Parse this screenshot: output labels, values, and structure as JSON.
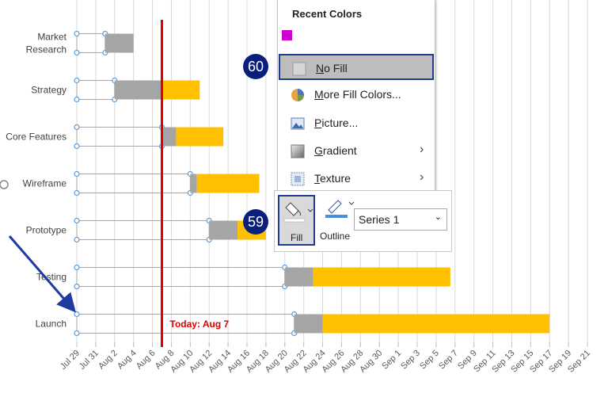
{
  "chart_data": {
    "type": "bar",
    "orientation": "horizontal",
    "stacked": true,
    "categories": [
      "Market\nResearch",
      "Strategy",
      "Core Features",
      "Wireframe",
      "Prototype",
      "Testing",
      "Launch"
    ],
    "series": [
      {
        "color": "none",
        "values": [
          3,
          4,
          9,
          12,
          14,
          22,
          23
        ]
      },
      {
        "color": "#a5a5a5",
        "values": [
          3,
          5,
          1.5,
          0.7,
          3,
          3,
          3
        ]
      },
      {
        "color": "#ffc000",
        "values": [
          0,
          4,
          5,
          6.6,
          3,
          14.5,
          24
        ]
      }
    ],
    "xlim": [
      0,
      54
    ],
    "xticks": [
      {
        "value": 0,
        "label": "Jul 29"
      },
      {
        "value": 2,
        "label": "Jul 31"
      },
      {
        "value": 4,
        "label": "Aug 2"
      },
      {
        "value": 6,
        "label": "Aug 4"
      },
      {
        "value": 8,
        "label": "Aug 6"
      },
      {
        "value": 10,
        "label": "Aug 8"
      },
      {
        "value": 12,
        "label": "Aug 10"
      },
      {
        "value": 14,
        "label": "Aug 12"
      },
      {
        "value": 16,
        "label": "Aug 14"
      },
      {
        "value": 18,
        "label": "Aug 16"
      },
      {
        "value": 20,
        "label": "Aug 18"
      },
      {
        "value": 22,
        "label": "Aug 20"
      },
      {
        "value": 24,
        "label": "Aug 22"
      },
      {
        "value": 26,
        "label": "Aug 24"
      },
      {
        "value": 28,
        "label": "Aug 26"
      },
      {
        "value": 30,
        "label": "Aug 28"
      },
      {
        "value": 32,
        "label": "Aug 30"
      },
      {
        "value": 34,
        "label": "Sep 1"
      },
      {
        "value": 36,
        "label": "Sep 3"
      },
      {
        "value": 38,
        "label": "Sep 5"
      },
      {
        "value": 40,
        "label": "Sep 7"
      },
      {
        "value": 42,
        "label": "Sep 9"
      },
      {
        "value": 44,
        "label": "Sep 11"
      },
      {
        "value": 46,
        "label": "Sep 13"
      },
      {
        "value": 48,
        "label": "Sep 15"
      },
      {
        "value": 50,
        "label": "Sep 17"
      },
      {
        "value": 52,
        "label": "Sep 19"
      },
      {
        "value": 54,
        "label": "Sep 21"
      }
    ],
    "grid": true,
    "today": {
      "value": 9,
      "label": "Today: Aug 7",
      "color": "#e00000"
    }
  },
  "menu": {
    "title": "Recent Colors",
    "items": [
      "No Fill",
      "More Fill Colors...",
      "Picture...",
      "Gradient",
      "Texture"
    ]
  },
  "toolbar": {
    "fill": "Fill",
    "outline": "Outline",
    "series": "Series 1"
  },
  "badges": [
    60,
    59
  ]
}
